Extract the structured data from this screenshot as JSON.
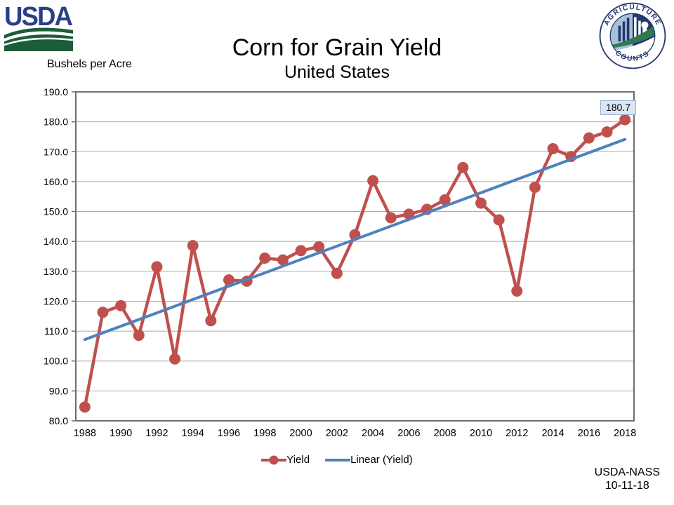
{
  "logos": {
    "usda": "USDA",
    "agriculture_top": "AGRICULTURE",
    "agriculture_bottom": "COUNTS"
  },
  "title": "Corn for Grain Yield",
  "subtitle": "United States",
  "y_axis_title": "Bushels per Acre",
  "annotation": {
    "label": "180.7",
    "fill": "#DCE6F2",
    "border": "#95B3D7"
  },
  "legend": [
    {
      "label": "Yield",
      "color": "#C0504D"
    },
    {
      "label": "Linear (Yield)",
      "color": "#4F81BD"
    }
  ],
  "footer": {
    "source": "USDA-NASS",
    "date": "10-11-18"
  },
  "chart_data": {
    "type": "line",
    "title": "Corn for Grain Yield",
    "subtitle": "United States",
    "xlabel": "",
    "ylabel": "Bushels per Acre",
    "x": [
      1988,
      1989,
      1990,
      1991,
      1992,
      1993,
      1994,
      1995,
      1996,
      1997,
      1998,
      1999,
      2000,
      2001,
      2002,
      2003,
      2004,
      2005,
      2006,
      2007,
      2008,
      2009,
      2010,
      2011,
      2012,
      2013,
      2014,
      2015,
      2016,
      2017,
      2018
    ],
    "series": [
      {
        "name": "Yield",
        "color": "#C0504D",
        "values": [
          84.6,
          116.3,
          118.5,
          108.6,
          131.5,
          100.7,
          138.6,
          113.5,
          127.1,
          126.7,
          134.4,
          133.8,
          136.9,
          138.2,
          129.3,
          142.2,
          160.3,
          147.9,
          149.1,
          150.7,
          153.9,
          164.7,
          152.8,
          147.2,
          123.4,
          158.1,
          171.0,
          168.4,
          174.6,
          176.6,
          180.7
        ]
      },
      {
        "name": "Linear (Yield)",
        "color": "#4F81BD",
        "derived": "linear_regression_of_yield"
      }
    ],
    "ylim": [
      80,
      190
    ],
    "ytick_step": 10,
    "ytick_decimals": 1,
    "xtick_step": 2,
    "grid": true,
    "legend_position": "bottom",
    "last_point_label": "180.7",
    "grid_color": "#ABABAB",
    "border_color": "#6E6E6E"
  }
}
